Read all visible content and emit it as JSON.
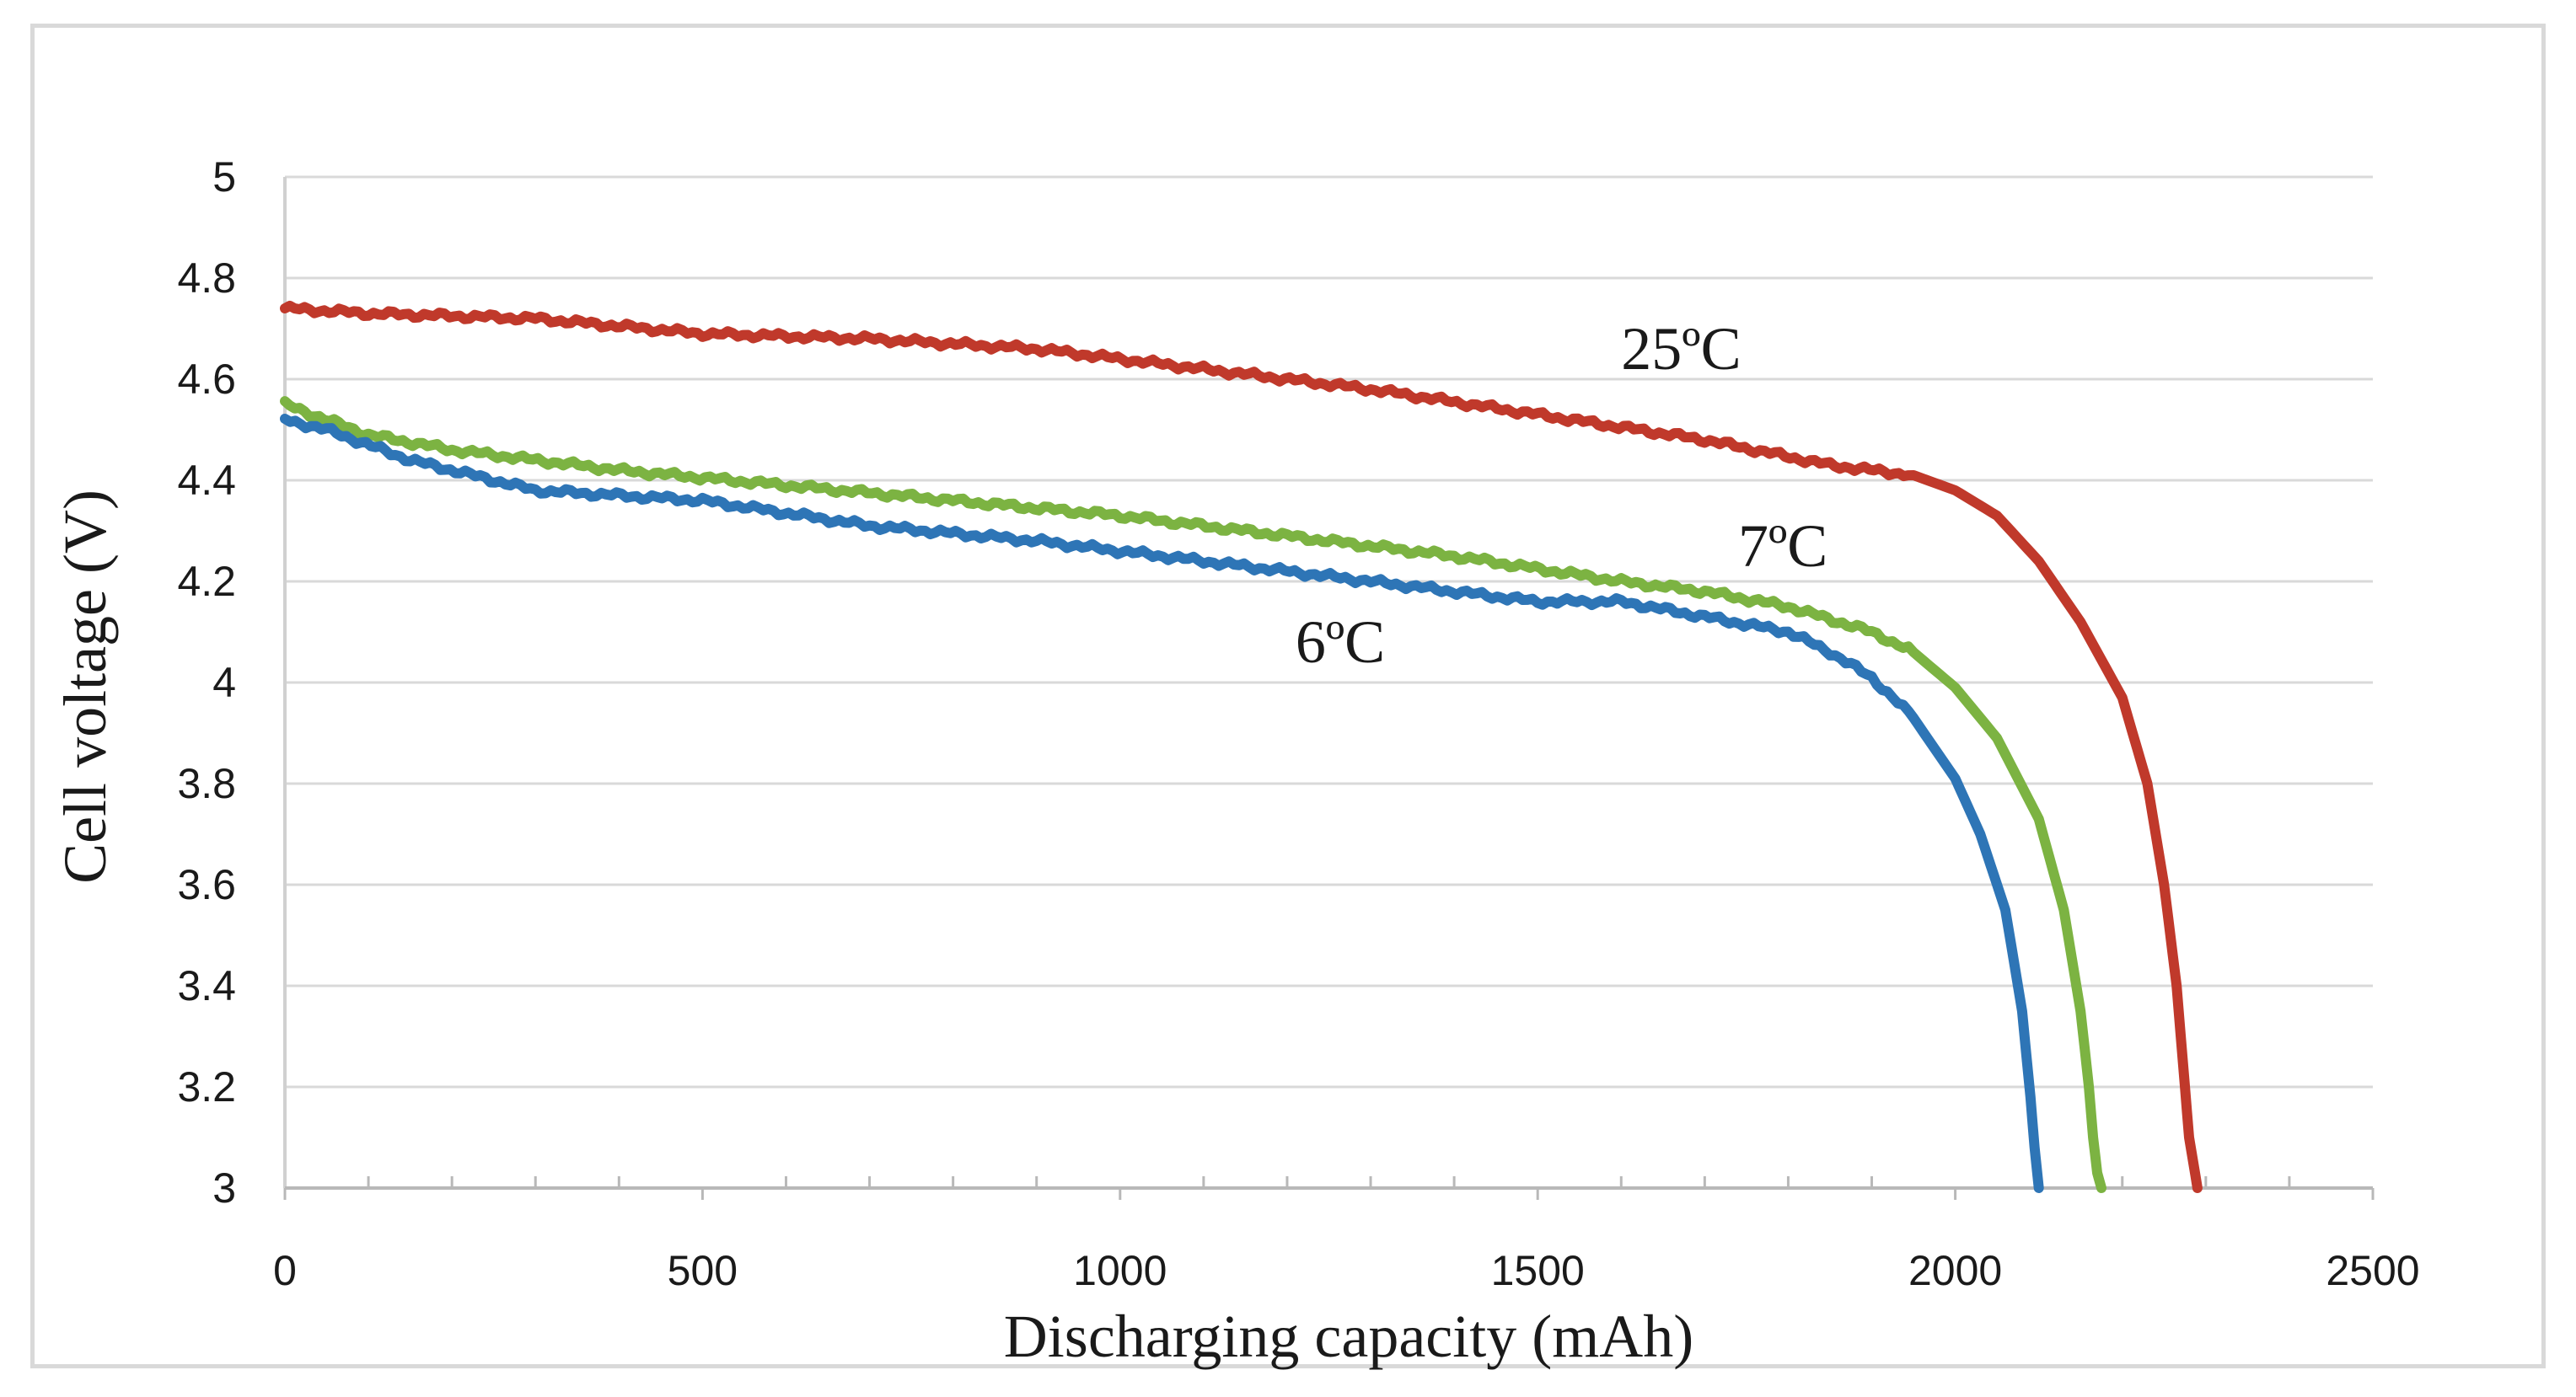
{
  "chart_data": {
    "type": "line",
    "title": "",
    "xlabel": "Discharging capacity (mAh)",
    "ylabel": "Cell voltage (V)",
    "xlim": [
      0,
      2500
    ],
    "ylim": [
      3,
      5
    ],
    "x_ticks": [
      "0",
      "500",
      "1000",
      "1500",
      "2000",
      "2500"
    ],
    "y_ticks": [
      "3",
      "3.2",
      "3.4",
      "3.6",
      "3.8",
      "4",
      "4.2",
      "4.4",
      "4.6",
      "4.8",
      "5"
    ],
    "grid": "horizontal",
    "series": [
      {
        "name": "25ºC",
        "color": "#c0392b",
        "x": [
          0,
          100,
          300,
          500,
          700,
          900,
          1100,
          1300,
          1500,
          1700,
          1850,
          1950,
          2000,
          2050,
          2100,
          2150,
          2200,
          2230,
          2250,
          2265,
          2275,
          2280,
          2285,
          2290
        ],
        "y": [
          4.74,
          4.73,
          4.72,
          4.69,
          4.68,
          4.66,
          4.62,
          4.58,
          4.53,
          4.48,
          4.43,
          4.41,
          4.38,
          4.33,
          4.24,
          4.12,
          3.97,
          3.8,
          3.6,
          3.4,
          3.2,
          3.1,
          3.05,
          3.0
        ]
      },
      {
        "name": "7ºC",
        "color": "#7cb342",
        "x": [
          0,
          100,
          200,
          400,
          600,
          800,
          1000,
          1200,
          1400,
          1600,
          1700,
          1800,
          1900,
          1950,
          2000,
          2050,
          2100,
          2130,
          2150,
          2160,
          2165,
          2170,
          2175
        ],
        "y": [
          4.55,
          4.49,
          4.46,
          4.42,
          4.39,
          4.36,
          4.33,
          4.29,
          4.25,
          4.2,
          4.18,
          4.15,
          4.1,
          4.06,
          3.99,
          3.89,
          3.73,
          3.55,
          3.35,
          3.2,
          3.1,
          3.03,
          3.0
        ]
      },
      {
        "name": "6ºC",
        "color": "#2e75b6",
        "x": [
          0,
          50,
          150,
          300,
          500,
          700,
          900,
          1100,
          1300,
          1500,
          1600,
          1700,
          1800,
          1850,
          1900,
          1950,
          2000,
          2030,
          2060,
          2080,
          2090,
          2095,
          2100
        ],
        "y": [
          4.52,
          4.5,
          4.44,
          4.38,
          4.36,
          4.31,
          4.28,
          4.24,
          4.2,
          4.16,
          4.16,
          4.13,
          4.1,
          4.06,
          4.01,
          3.93,
          3.81,
          3.7,
          3.55,
          3.35,
          3.18,
          3.08,
          3.0
        ]
      }
    ],
    "annotations": [
      {
        "text": "25ºC",
        "x": 1600,
        "y": 4.62
      },
      {
        "text": "7ºC",
        "x": 1740,
        "y": 4.23
      },
      {
        "text": "6ºC",
        "x": 1210,
        "y": 4.04
      }
    ]
  }
}
